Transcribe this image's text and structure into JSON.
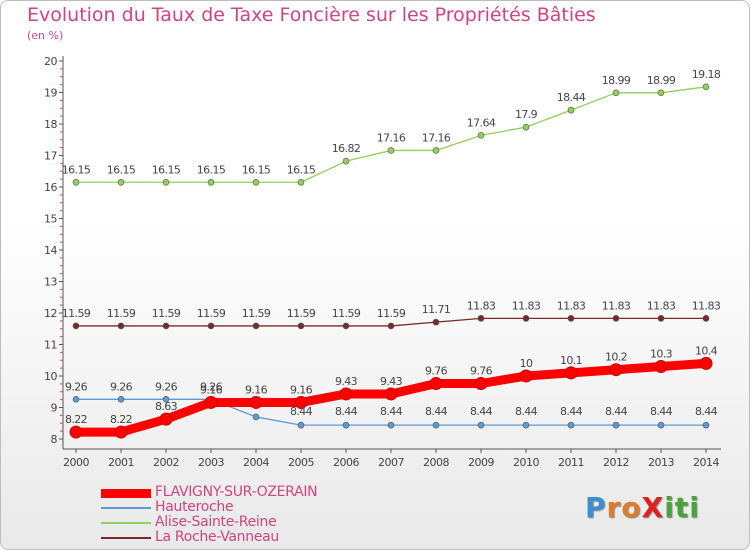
{
  "title": "Evolution du Taux de Taxe Foncière sur les Propriétés Bâties",
  "unit_label": "(en %)",
  "logo": {
    "text": "ProXiti",
    "letters": [
      {
        "ch": "P",
        "color": "#3a8fd1"
      },
      {
        "ch": "r",
        "color": "#e07b28"
      },
      {
        "ch": "o",
        "color": "#e07b28"
      },
      {
        "ch": "X",
        "color": "#e02020"
      },
      {
        "ch": "i",
        "color": "#4aa33a"
      },
      {
        "ch": "t",
        "color": "#4aa33a"
      },
      {
        "ch": "i",
        "color": "#4aa33a"
      }
    ]
  },
  "colors": {
    "title": "#d2447e",
    "axis": "#555555",
    "grid_tick": "#d2447e"
  },
  "chart_data": {
    "type": "line",
    "title": "Evolution du Taux de Taxe Foncière sur les Propriétés Bâties",
    "ylabel": "(en %)",
    "x": [
      "2000",
      "2001",
      "2002",
      "2003",
      "2004",
      "2005",
      "2006",
      "2007",
      "2008",
      "2009",
      "2010",
      "2011",
      "2012",
      "2013",
      "2014"
    ],
    "ylim": [
      8,
      20
    ],
    "yticks": [
      "8",
      "9",
      "10",
      "11",
      "12",
      "13",
      "14",
      "15",
      "16",
      "17",
      "18",
      "19",
      "20"
    ],
    "series": [
      {
        "name": "FLAVIGNY-SUR-OZERAIN",
        "color": "#ff0000",
        "width": 9,
        "values": [
          8.22,
          8.22,
          8.63,
          9.16,
          9.16,
          9.16,
          9.43,
          9.43,
          9.76,
          9.76,
          10,
          10.1,
          10.2,
          10.3,
          10.4
        ],
        "labels": [
          "8.22",
          "8.22",
          "8.63",
          "9.16",
          "9.16",
          "9.16",
          "9.43",
          "9.43",
          "9.76",
          "9.76",
          "10",
          "10.1",
          "10.2",
          "10.3",
          "10.4"
        ]
      },
      {
        "name": "Hauteroche",
        "color": "#5b9bd5",
        "width": 1.3,
        "values": [
          9.26,
          9.26,
          9.26,
          9.26,
          8.7,
          8.44,
          8.44,
          8.44,
          8.44,
          8.44,
          8.44,
          8.44,
          8.44,
          8.44,
          8.44
        ],
        "labels": [
          "9.26",
          "9.26",
          "9.26",
          "9.26",
          "",
          "8.44",
          "8.44",
          "8.44",
          "8.44",
          "8.44",
          "8.44",
          "8.44",
          "8.44",
          "8.44",
          "8.44"
        ]
      },
      {
        "name": "Alise-Sainte-Reine",
        "color": "#8fd15a",
        "width": 1.3,
        "values": [
          16.15,
          16.15,
          16.15,
          16.15,
          16.15,
          16.15,
          16.82,
          17.16,
          17.16,
          17.64,
          17.9,
          18.44,
          18.99,
          18.99,
          19.18
        ],
        "labels": [
          "16.15",
          "16.15",
          "16.15",
          "16.15",
          "16.15",
          "16.15",
          "16.82",
          "17.16",
          "17.16",
          "17.64",
          "17.9",
          "18.44",
          "18.99",
          "18.99",
          "19.18"
        ]
      },
      {
        "name": "La Roche-Vanneau",
        "color": "#7a2a2a",
        "width": 1.3,
        "values": [
          11.59,
          11.59,
          11.59,
          11.59,
          11.59,
          11.59,
          11.59,
          11.59,
          11.71,
          11.83,
          11.83,
          11.83,
          11.83,
          11.83,
          11.83
        ],
        "labels": [
          "11.59",
          "11.59",
          "11.59",
          "11.59",
          "11.59",
          "11.59",
          "11.59",
          "11.59",
          "11.71",
          "11.83",
          "11.83",
          "11.83",
          "11.83",
          "11.83",
          "11.83"
        ]
      }
    ],
    "grid": false,
    "legend_position": "bottom-left"
  }
}
